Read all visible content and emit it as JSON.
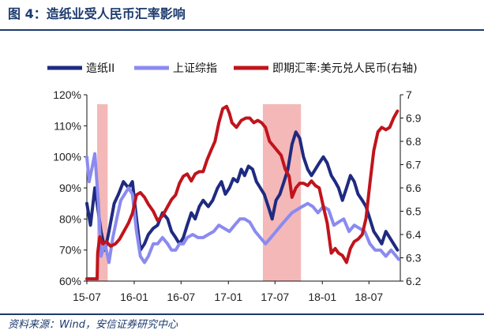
{
  "header": {
    "title": "图 4：造纸业受人民币汇率影响"
  },
  "footer": {
    "source": "资料来源：Wind，安信证券研究中心"
  },
  "chart_data": {
    "type": "line",
    "title": "",
    "xlabel": "",
    "ylabel": "",
    "y2label": "",
    "legend_position": "top",
    "grid": false,
    "x_ticks": [
      "15-07",
      "16-01",
      "16-07",
      "17-01",
      "17-07",
      "18-01",
      "18-07"
    ],
    "y_left_ticks": [
      "60%",
      "70%",
      "80%",
      "90%",
      "100%",
      "110%",
      "120%"
    ],
    "y_right_ticks": [
      "6.2",
      "6.3",
      "6.4",
      "6.5",
      "6.6",
      "6.7",
      "6.8",
      "6.9",
      "7"
    ],
    "ylim_left": [
      60,
      120
    ],
    "ylim_right": [
      6.2,
      7.0
    ],
    "xlim": [
      "2015-07-01",
      "2018-10-31"
    ],
    "shaded_periods": [
      {
        "start": "2015-08-10",
        "end": "2015-09-20",
        "color": "#f4b8b8"
      },
      {
        "start": "2017-05-15",
        "end": "2017-10-10",
        "color": "#f4b8b8"
      }
    ],
    "series": [
      {
        "name": "造纸II",
        "axis": "left",
        "color": "#1f2a80",
        "x": [
          "2015-07-01",
          "2015-07-15",
          "2015-08-01",
          "2015-08-15",
          "2015-08-25",
          "2015-09-10",
          "2015-09-25",
          "2015-10-15",
          "2015-11-01",
          "2015-11-20",
          "2015-12-10",
          "2015-12-25",
          "2016-01-10",
          "2016-01-25",
          "2016-02-10",
          "2016-02-25",
          "2016-03-15",
          "2016-04-01",
          "2016-04-20",
          "2016-05-10",
          "2016-05-25",
          "2016-06-10",
          "2016-06-25",
          "2016-07-10",
          "2016-07-25",
          "2016-08-10",
          "2016-08-25",
          "2016-09-10",
          "2016-09-25",
          "2016-10-15",
          "2016-11-01",
          "2016-11-20",
          "2016-12-05",
          "2016-12-20",
          "2017-01-05",
          "2017-01-20",
          "2017-02-05",
          "2017-02-20",
          "2017-03-05",
          "2017-03-20",
          "2017-04-05",
          "2017-04-20",
          "2017-05-05",
          "2017-05-20",
          "2017-06-05",
          "2017-06-20",
          "2017-07-05",
          "2017-07-20",
          "2017-08-05",
          "2017-08-20",
          "2017-09-05",
          "2017-09-20",
          "2017-10-05",
          "2017-10-20",
          "2017-11-05",
          "2017-11-20",
          "2017-12-05",
          "2017-12-20",
          "2018-01-05",
          "2018-01-20",
          "2018-02-05",
          "2018-02-20",
          "2018-03-05",
          "2018-03-20",
          "2018-04-05",
          "2018-04-20",
          "2018-05-05",
          "2018-05-20",
          "2018-06-05",
          "2018-06-20",
          "2018-07-05",
          "2018-07-20",
          "2018-08-05",
          "2018-08-20",
          "2018-09-05",
          "2018-09-20",
          "2018-10-05",
          "2018-10-20"
        ],
        "y": [
          85,
          78,
          90,
          82,
          76,
          70,
          76,
          85,
          88,
          92,
          90,
          92,
          80,
          70,
          72,
          75,
          77,
          78,
          82,
          80,
          76,
          74,
          72,
          74,
          78,
          82,
          80,
          84,
          86,
          84,
          86,
          90,
          92,
          88,
          90,
          93,
          92,
          96,
          94,
          97,
          96,
          92,
          90,
          88,
          84,
          80,
          86,
          88,
          92,
          96,
          104,
          108,
          106,
          100,
          96,
          94,
          96,
          98,
          100,
          98,
          94,
          92,
          90,
          86,
          90,
          94,
          92,
          88,
          86,
          84,
          80,
          76,
          74,
          72,
          76,
          74,
          72,
          70
        ]
      },
      {
        "name": "上证综指",
        "axis": "left",
        "color": "#8a8af0",
        "x": [
          "2015-07-01",
          "2015-07-10",
          "2015-07-20",
          "2015-08-01",
          "2015-08-15",
          "2015-08-25",
          "2015-09-10",
          "2015-09-25",
          "2015-10-10",
          "2015-10-25",
          "2015-11-10",
          "2015-11-25",
          "2015-12-10",
          "2015-12-25",
          "2016-01-10",
          "2016-01-25",
          "2016-02-10",
          "2016-02-25",
          "2016-03-15",
          "2016-04-01",
          "2016-04-20",
          "2016-05-10",
          "2016-05-25",
          "2016-06-10",
          "2016-06-25",
          "2016-07-10",
          "2016-07-25",
          "2016-08-15",
          "2016-09-05",
          "2016-09-25",
          "2016-10-15",
          "2016-11-05",
          "2016-11-25",
          "2016-12-15",
          "2017-01-05",
          "2017-01-25",
          "2017-02-15",
          "2017-03-05",
          "2017-03-25",
          "2017-04-15",
          "2017-05-05",
          "2017-05-25",
          "2017-06-15",
          "2017-07-05",
          "2017-07-25",
          "2017-08-15",
          "2017-09-05",
          "2017-09-25",
          "2017-10-15",
          "2017-11-05",
          "2017-11-25",
          "2017-12-15",
          "2018-01-05",
          "2018-01-25",
          "2018-02-15",
          "2018-03-05",
          "2018-03-25",
          "2018-04-15",
          "2018-05-05",
          "2018-05-25",
          "2018-06-15",
          "2018-07-05",
          "2018-07-25",
          "2018-08-15",
          "2018-09-05",
          "2018-09-25",
          "2018-10-15",
          "2018-10-25"
        ],
        "y": [
          100,
          92,
          96,
          101,
          85,
          68,
          72,
          66,
          74,
          80,
          86,
          88,
          90,
          88,
          76,
          68,
          66,
          68,
          72,
          72,
          74,
          72,
          70,
          70,
          72,
          72,
          74,
          75,
          74,
          74,
          75,
          76,
          78,
          77,
          76,
          78,
          80,
          80,
          79,
          76,
          74,
          72,
          74,
          76,
          78,
          80,
          82,
          83,
          84,
          85,
          84,
          82,
          84,
          83,
          78,
          79,
          80,
          76,
          78,
          77,
          76,
          72,
          70,
          70,
          68,
          70,
          68,
          67
        ]
      },
      {
        "name": "即期汇率:美元兑人民币(右轴)",
        "axis": "right",
        "color": "#c0141c",
        "x": [
          "2015-07-01",
          "2015-08-10",
          "2015-08-12",
          "2015-08-20",
          "2015-09-01",
          "2015-09-15",
          "2015-10-01",
          "2015-10-20",
          "2015-11-05",
          "2015-11-20",
          "2015-12-10",
          "2015-12-25",
          "2016-01-10",
          "2016-01-25",
          "2016-02-10",
          "2016-02-25",
          "2016-03-15",
          "2016-04-01",
          "2016-04-20",
          "2016-05-10",
          "2016-05-25",
          "2016-06-10",
          "2016-06-25",
          "2016-07-10",
          "2016-07-25",
          "2016-08-10",
          "2016-08-25",
          "2016-09-10",
          "2016-09-25",
          "2016-10-10",
          "2016-10-25",
          "2016-11-10",
          "2016-11-25",
          "2016-12-10",
          "2016-12-25",
          "2017-01-05",
          "2017-01-15",
          "2017-02-01",
          "2017-02-20",
          "2017-03-10",
          "2017-03-25",
          "2017-04-10",
          "2017-04-25",
          "2017-05-10",
          "2017-05-25",
          "2017-06-10",
          "2017-06-25",
          "2017-07-10",
          "2017-07-25",
          "2017-08-10",
          "2017-08-25",
          "2017-09-05",
          "2017-09-20",
          "2017-10-05",
          "2017-10-20",
          "2017-11-05",
          "2017-11-20",
          "2017-12-05",
          "2017-12-20",
          "2018-01-05",
          "2018-01-20",
          "2018-02-05",
          "2018-02-20",
          "2018-03-05",
          "2018-03-20",
          "2018-04-05",
          "2018-04-20",
          "2018-05-05",
          "2018-05-20",
          "2018-06-05",
          "2018-06-20",
          "2018-07-05",
          "2018-07-20",
          "2018-08-05",
          "2018-08-20",
          "2018-09-05",
          "2018-09-20",
          "2018-10-05",
          "2018-10-20"
        ],
        "y": [
          6.21,
          6.21,
          6.32,
          6.39,
          6.36,
          6.37,
          6.35,
          6.36,
          6.38,
          6.41,
          6.45,
          6.49,
          6.57,
          6.58,
          6.56,
          6.53,
          6.5,
          6.46,
          6.48,
          6.52,
          6.55,
          6.57,
          6.62,
          6.65,
          6.66,
          6.63,
          6.66,
          6.67,
          6.67,
          6.72,
          6.76,
          6.8,
          6.88,
          6.94,
          6.95,
          6.92,
          6.88,
          6.86,
          6.89,
          6.9,
          6.9,
          6.88,
          6.89,
          6.88,
          6.86,
          6.8,
          6.78,
          6.76,
          6.74,
          6.68,
          6.65,
          6.56,
          6.6,
          6.62,
          6.62,
          6.61,
          6.63,
          6.61,
          6.6,
          6.52,
          6.45,
          6.32,
          6.34,
          6.32,
          6.31,
          6.28,
          6.34,
          6.37,
          6.38,
          6.4,
          6.47,
          6.62,
          6.76,
          6.84,
          6.86,
          6.85,
          6.86,
          6.9,
          6.93
        ]
      }
    ]
  }
}
